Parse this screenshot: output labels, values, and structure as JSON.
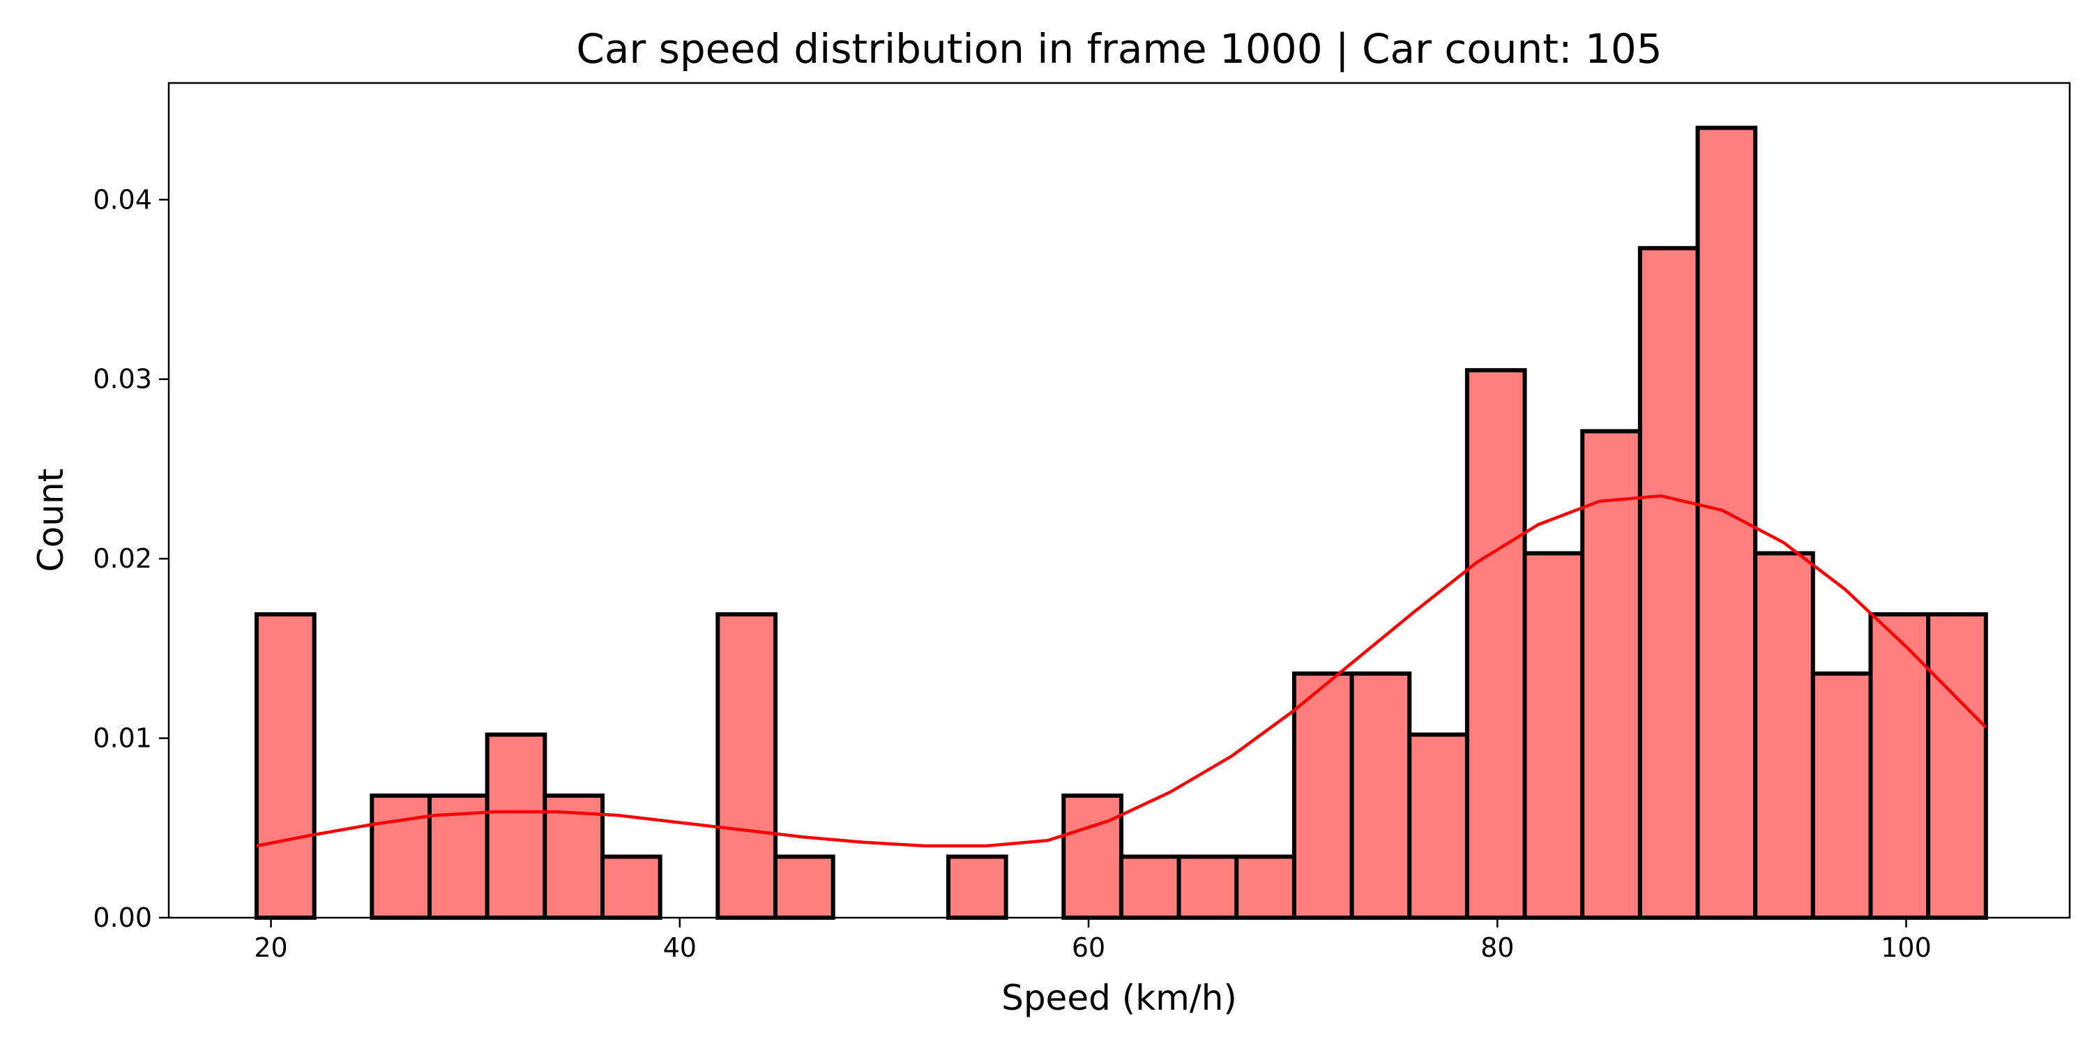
{
  "chart_data": {
    "type": "bar",
    "title": "Car speed distribution in frame 1000 | Car count: 105",
    "xlabel": "Speed (km/h)",
    "ylabel": "Count",
    "xlim": [
      15,
      108
    ],
    "ylim": [
      0,
      0.0465
    ],
    "xticks": [
      20,
      40,
      60,
      80,
      100
    ],
    "yticks": [
      0.0,
      0.01,
      0.02,
      0.03,
      0.04
    ],
    "ytick_labels": [
      "0.00",
      "0.01",
      "0.02",
      "0.03",
      "0.04"
    ],
    "grid": false,
    "bin_edges": [
      19.3,
      22.12,
      24.94,
      27.76,
      30.58,
      33.4,
      36.22,
      39.04,
      41.86,
      44.68,
      47.5,
      50.32,
      53.14,
      55.96,
      58.78,
      61.6,
      64.42,
      67.24,
      70.06,
      72.88,
      75.7,
      78.52,
      81.34,
      84.16,
      86.98,
      89.8,
      92.62,
      95.44,
      98.26,
      101.08,
      103.9
    ],
    "values": [
      0.0169,
      0,
      0.0068,
      0.0068,
      0.0102,
      0.0068,
      0.0034,
      0,
      0.0169,
      0.0034,
      0,
      0,
      0.0034,
      0,
      0.0068,
      0.0034,
      0.0034,
      0.0034,
      0.0136,
      0.0136,
      0.0102,
      0.0305,
      0.0203,
      0.0271,
      0.0373,
      0.044,
      0.0203,
      0.0136,
      0.0169,
      0.0169
    ],
    "kde": {
      "x": [
        19.3,
        22,
        25,
        28,
        31,
        34,
        37,
        40,
        43,
        46,
        49,
        52,
        55,
        58,
        61,
        64,
        67,
        70,
        73,
        76,
        79,
        82,
        85,
        88,
        91,
        94,
        97,
        100,
        103.9
      ],
      "y": [
        0.004,
        0.0046,
        0.0052,
        0.0057,
        0.0059,
        0.0059,
        0.0057,
        0.0053,
        0.0049,
        0.0045,
        0.0042,
        0.004,
        0.004,
        0.0043,
        0.0054,
        0.007,
        0.009,
        0.0115,
        0.0143,
        0.0171,
        0.0198,
        0.0219,
        0.0232,
        0.0235,
        0.0227,
        0.0209,
        0.0183,
        0.0151,
        0.0106
      ],
      "color": "#ff0000"
    },
    "bar_color": "#ff7f7f",
    "edge_color": "#000000"
  }
}
